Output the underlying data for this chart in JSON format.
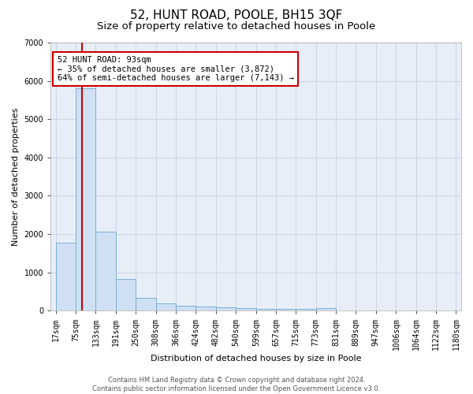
{
  "title": "52, HUNT ROAD, POOLE, BH15 3QF",
  "subtitle": "Size of property relative to detached houses in Poole",
  "xlabel": "Distribution of detached houses by size in Poole",
  "ylabel": "Number of detached properties",
  "bin_edges": [
    17,
    75,
    133,
    191,
    250,
    308,
    366,
    424,
    482,
    540,
    599,
    657,
    715,
    773,
    831,
    889,
    947,
    1006,
    1064,
    1122,
    1180
  ],
  "bar_heights": [
    1780,
    5800,
    2060,
    820,
    340,
    200,
    130,
    100,
    80,
    60,
    50,
    40,
    40,
    60,
    0,
    0,
    0,
    0,
    0,
    0
  ],
  "bar_color": "#cfe0f3",
  "bar_edge_color": "#7aafd4",
  "grid_color": "#c8d0e0",
  "background_color": "#e8eef8",
  "property_size": 93,
  "red_line_color": "#cc0000",
  "annotation_text": "52 HUNT ROAD: 93sqm\n← 35% of detached houses are smaller (3,872)\n64% of semi-detached houses are larger (7,143) →",
  "annotation_box_color": "white",
  "annotation_box_edge": "#cc0000",
  "ylim": [
    0,
    7000
  ],
  "yticks": [
    0,
    1000,
    2000,
    3000,
    4000,
    5000,
    6000,
    7000
  ],
  "footnote": "Contains HM Land Registry data © Crown copyright and database right 2024.\nContains public sector information licensed under the Open Government Licence v3.0.",
  "title_fontsize": 11,
  "subtitle_fontsize": 9.5,
  "axis_label_fontsize": 8,
  "tick_fontsize": 7,
  "annotation_fontsize": 7.5,
  "footnote_fontsize": 6
}
